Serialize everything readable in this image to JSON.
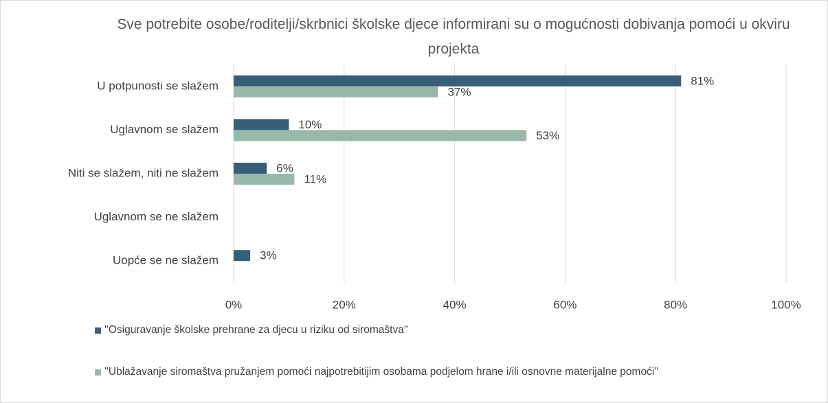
{
  "chart_data": {
    "type": "bar",
    "orientation": "horizontal",
    "title": "Sve potrebite osobe/roditelji/skrbnici školske djece informirani su o mogućnosti dobivanja pomoći u okviru projekta",
    "categories": [
      "U potpunosti se slažem",
      "Uglavnom se slažem",
      "Niti se slažem, niti ne slažem",
      "Uglavnom se ne slažem",
      "Uopće se ne slažem"
    ],
    "series": [
      {
        "name": "''Osiguravanje školske prehrane za djecu u riziku od siromaštva''",
        "color": "#375f7a",
        "values": [
          81,
          10,
          6,
          null,
          3
        ],
        "value_labels": [
          "81%",
          "10%",
          "6%",
          null,
          "3%"
        ]
      },
      {
        "name": "''Ublažavanje siromaštva pružanjem pomoći najpotrebitijim osobama podjelom hrane i/ili osnovne materijalne pomoći''",
        "color": "#98b9aa",
        "values": [
          37,
          53,
          11,
          null,
          null
        ],
        "value_labels": [
          "37%",
          "53%",
          "11%",
          null,
          null
        ]
      }
    ],
    "xlim": [
      0,
      100
    ],
    "xticks": [
      {
        "value": 0,
        "label": "0%"
      },
      {
        "value": 20,
        "label": "20%"
      },
      {
        "value": 40,
        "label": "40%"
      },
      {
        "value": 60,
        "label": "60%"
      },
      {
        "value": 80,
        "label": "80%"
      },
      {
        "value": 100,
        "label": "100%"
      }
    ],
    "grid": true,
    "legend": "bottom"
  }
}
